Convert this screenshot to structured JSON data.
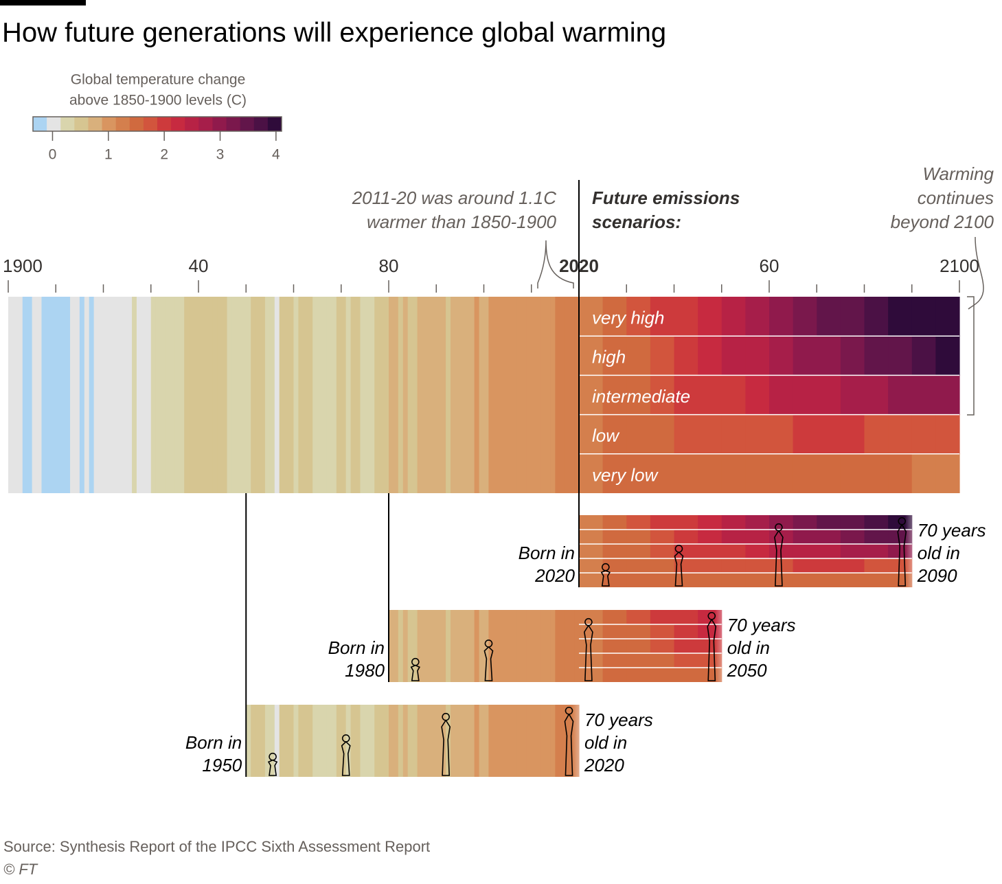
{
  "chart_data": {
    "type": "stripes",
    "title": "How future generations will experience global warming",
    "legend": {
      "title": [
        "Global temperature change",
        "above 1850-1900 levels (C)"
      ],
      "ticks": [
        0,
        1,
        2,
        3,
        4
      ],
      "lim": [
        -0.35,
        4.1
      ],
      "colors": [
        "#acd4f2",
        "#e4e4e4",
        "#d9d5ad",
        "#d6c591",
        "#d9b07c",
        "#d99560",
        "#d47f4d",
        "#d06a3f",
        "#d2553d",
        "#cd3a3c",
        "#c72a40",
        "#b72245",
        "#a61e4a",
        "#901a4c",
        "#7a184c",
        "#62154a",
        "#4b1145",
        "#2f0b3a"
      ]
    },
    "xlim": [
      1900,
      2100
    ],
    "xticks": [
      1900,
      {
        "value": 1940,
        "label": "40"
      },
      {
        "value": 1980,
        "label": "80"
      },
      2020,
      {
        "value": 2060,
        "label": "60"
      },
      2100
    ],
    "xticks_minor": [
      1910,
      1920,
      1930,
      1950,
      1960,
      1970,
      1990,
      2000,
      2010,
      2030,
      2040,
      2050,
      2070,
      2080,
      2090
    ],
    "annotations": {
      "observed": [
        "2011-20 was around 1.1C",
        "warmer than 1850-1900"
      ],
      "scenarios_heading": [
        "Future emissions",
        "scenarios:"
      ],
      "beyond": [
        "Warming",
        "continues",
        "beyond 2100"
      ]
    },
    "historical": {
      "x": [
        1900,
        1901,
        1902,
        1903,
        1904,
        1905,
        1906,
        1907,
        1908,
        1909,
        1910,
        1911,
        1912,
        1913,
        1914,
        1915,
        1916,
        1917,
        1918,
        1919,
        1920,
        1921,
        1922,
        1923,
        1924,
        1925,
        1926,
        1927,
        1928,
        1929,
        1930,
        1931,
        1932,
        1933,
        1934,
        1935,
        1936,
        1937,
        1938,
        1939,
        1940,
        1941,
        1942,
        1943,
        1944,
        1945,
        1946,
        1947,
        1948,
        1949,
        1950,
        1951,
        1952,
        1953,
        1954,
        1955,
        1956,
        1957,
        1958,
        1959,
        1960,
        1961,
        1962,
        1963,
        1964,
        1965,
        1966,
        1967,
        1968,
        1969,
        1970,
        1971,
        1972,
        1973,
        1974,
        1975,
        1976,
        1977,
        1978,
        1979,
        1980,
        1981,
        1982,
        1983,
        1984,
        1985,
        1986,
        1987,
        1988,
        1989,
        1990,
        1991,
        1992,
        1993,
        1994,
        1995,
        1996,
        1997,
        1998,
        1999,
        2000,
        2001,
        2002,
        2003,
        2004,
        2005,
        2006,
        2007,
        2008,
        2009,
        2010,
        2011,
        2012,
        2013,
        2014,
        2015,
        2016,
        2017,
        2018,
        2019
      ],
      "values": [
        0.0,
        0.0,
        0.0,
        -0.2,
        -0.2,
        0.0,
        0.0,
        -0.2,
        -0.2,
        -0.2,
        -0.2,
        -0.2,
        -0.2,
        0.05,
        0.1,
        -0.15,
        0.05,
        -0.2,
        0.0,
        0.05,
        0.05,
        0.1,
        0.05,
        0.05,
        0.05,
        0.1,
        0.3,
        0.1,
        0.1,
        0.0,
        0.3,
        0.35,
        0.3,
        0.3,
        0.3,
        0.3,
        0.35,
        0.45,
        0.45,
        0.4,
        0.5,
        0.5,
        0.45,
        0.45,
        0.55,
        0.45,
        0.3,
        0.35,
        0.3,
        0.3,
        0.25,
        0.4,
        0.45,
        0.5,
        0.3,
        0.25,
        0.1,
        0.4,
        0.45,
        0.4,
        0.35,
        0.4,
        0.4,
        0.45,
        0.15,
        0.25,
        0.35,
        0.35,
        0.3,
        0.45,
        0.4,
        0.3,
        0.4,
        0.55,
        0.3,
        0.35,
        0.2,
        0.55,
        0.45,
        0.55,
        0.65,
        0.7,
        0.55,
        0.75,
        0.6,
        0.55,
        0.65,
        0.75,
        0.8,
        0.7,
        0.85,
        0.8,
        0.6,
        0.65,
        0.7,
        0.85,
        0.7,
        0.85,
        1.05,
        0.8,
        0.8,
        0.95,
        1.0,
        1.0,
        0.95,
        1.05,
        1.0,
        1.0,
        0.95,
        1.0,
        1.1,
        0.95,
        1.0,
        1.05,
        1.1,
        1.25,
        1.35,
        1.25,
        1.2,
        1.3
      ]
    },
    "scenarios": {
      "x": [
        2020,
        2025,
        2030,
        2035,
        2040,
        2045,
        2050,
        2055,
        2060,
        2065,
        2070,
        2075,
        2080,
        2085,
        2090,
        2095
      ],
      "series": [
        {
          "name": "very high",
          "values": [
            1.3,
            1.5,
            1.7,
            1.9,
            2.1,
            2.3,
            2.6,
            2.8,
            3.0,
            3.2,
            3.4,
            3.6,
            3.8,
            3.9,
            4.0,
            4.1
          ]
        },
        {
          "name": "high",
          "values": [
            1.3,
            1.5,
            1.6,
            1.8,
            2.0,
            2.2,
            2.4,
            2.6,
            2.8,
            3.0,
            3.1,
            3.3,
            3.5,
            3.6,
            3.8,
            3.9
          ]
        },
        {
          "name": "intermediate",
          "values": [
            1.3,
            1.5,
            1.6,
            1.7,
            1.9,
            2.0,
            2.1,
            2.3,
            2.4,
            2.5,
            2.6,
            2.7,
            2.8,
            2.9,
            3.0,
            3.0
          ]
        },
        {
          "name": "low",
          "values": [
            1.3,
            1.4,
            1.5,
            1.6,
            1.7,
            1.7,
            1.8,
            1.8,
            1.8,
            1.9,
            1.9,
            1.9,
            1.8,
            1.8,
            1.8,
            1.8
          ]
        },
        {
          "name": "very low",
          "values": [
            1.3,
            1.4,
            1.5,
            1.5,
            1.6,
            1.6,
            1.5,
            1.5,
            1.5,
            1.4,
            1.4,
            1.4,
            1.4,
            1.4,
            1.3,
            1.3
          ]
        }
      ]
    },
    "cohorts": [
      {
        "label": "Born in",
        "born": 2020,
        "age_label": [
          "70 years",
          "old in"
        ],
        "until": 2090
      },
      {
        "label": "Born in",
        "born": 1980,
        "age_label": [
          "70 years",
          "old in"
        ],
        "until": 2050
      },
      {
        "label": "Born in",
        "born": 1950,
        "age_label": [
          "70 years",
          "old in"
        ],
        "until": 2020
      }
    ],
    "source": "Source: Synthesis Report of the IPCC Sixth Assessment Report",
    "credit": "© FT"
  }
}
